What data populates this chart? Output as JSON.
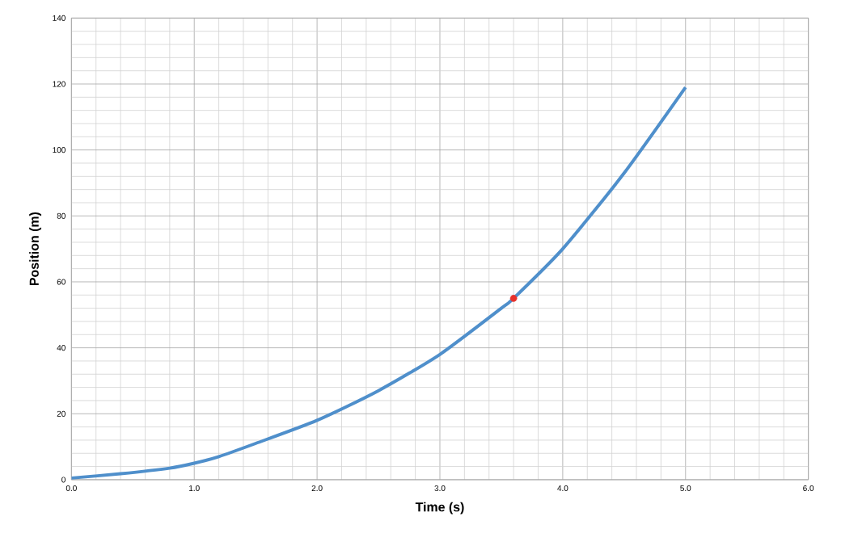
{
  "chart_data": {
    "type": "line",
    "xlabel": "Time (s)",
    "ylabel": "Position (m)",
    "xlim": [
      0,
      6
    ],
    "ylim": [
      0,
      140
    ],
    "xticks": [
      {
        "value": 0,
        "label": "0.0"
      },
      {
        "value": 1,
        "label": "1.0"
      },
      {
        "value": 2,
        "label": "2.0"
      },
      {
        "value": 3,
        "label": "3.0"
      },
      {
        "value": 4,
        "label": "4.0"
      },
      {
        "value": 5,
        "label": "5.0"
      },
      {
        "value": 6,
        "label": "6.0"
      }
    ],
    "yticks": [
      0,
      20,
      40,
      60,
      80,
      100,
      120,
      140
    ],
    "grid": true,
    "series": [
      {
        "color": "#4f8fcb",
        "marker": "none",
        "x": [
          0,
          0.4,
          0.8,
          1.0,
          1.2,
          1.5,
          2.0,
          2.5,
          3.0,
          3.5,
          3.6,
          4.0,
          4.5,
          5.0
        ],
        "values": [
          0.5,
          1.8,
          3.5,
          5,
          7,
          11,
          18,
          27,
          38,
          52,
          55,
          70,
          93,
          119
        ]
      },
      {
        "type": "scatter",
        "color": "#e8302a",
        "marker": "circle",
        "x": [
          3.6
        ],
        "values": [
          55
        ]
      }
    ]
  }
}
